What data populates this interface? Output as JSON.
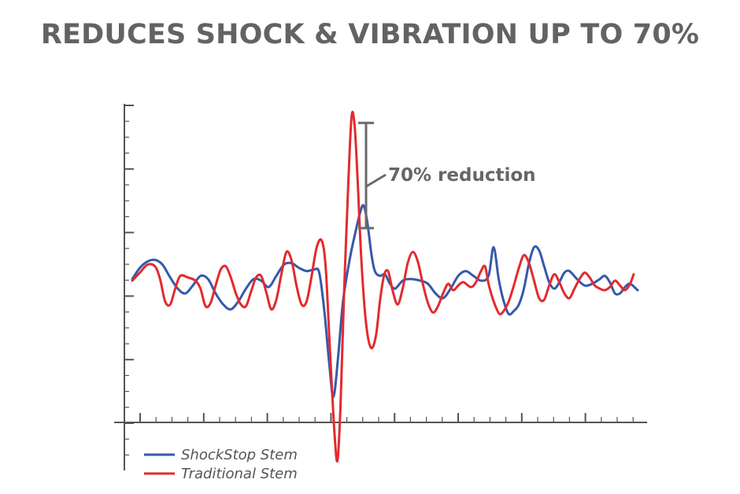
{
  "title": "REDUCES SHOCK & VIBRATION UP TO 70%",
  "annotation": "70% reduction",
  "colors": {
    "shockstop": "#3659a8",
    "traditional": "#e32a2e",
    "axis": "#555555",
    "text": "#636363"
  },
  "chart_data": {
    "type": "line",
    "title": "REDUCES SHOCK & VIBRATION UP TO 70%",
    "xlabel": "",
    "ylabel": "",
    "xlim": [
      0,
      100
    ],
    "ylim": [
      -5,
      6
    ],
    "grid": false,
    "tick_labels": "none",
    "legend_position": "bottom-left",
    "annotation": {
      "text": "70% reduction",
      "from_y": 5.4,
      "to_y": 2.1
    },
    "series": [
      {
        "name": "ShockStop Stem",
        "color": "#3659a8",
        "points": [
          [
            0,
            0.5
          ],
          [
            1.5,
            0.85
          ],
          [
            3,
            1.05
          ],
          [
            4.5,
            1.1
          ],
          [
            6,
            0.95
          ],
          [
            7.5,
            0.55
          ],
          [
            9,
            0.2
          ],
          [
            10.5,
            0.05
          ],
          [
            12,
            0.3
          ],
          [
            13.5,
            0.6
          ],
          [
            15,
            0.5
          ],
          [
            16.5,
            0.05
          ],
          [
            18,
            -0.3
          ],
          [
            19.5,
            -0.45
          ],
          [
            21,
            -0.2
          ],
          [
            22.5,
            0.2
          ],
          [
            24,
            0.5
          ],
          [
            25.5,
            0.45
          ],
          [
            27,
            0.25
          ],
          [
            28.5,
            0.6
          ],
          [
            30,
            0.95
          ],
          [
            31.5,
            1.0
          ],
          [
            33,
            0.85
          ],
          [
            34.5,
            0.75
          ],
          [
            36,
            0.8
          ],
          [
            37,
            0.7
          ],
          [
            38,
            -0.5
          ],
          [
            39,
            -2.2
          ],
          [
            39.8,
            -3.2
          ],
          [
            40.7,
            -2.0
          ],
          [
            41.7,
            -0.2
          ],
          [
            43,
            1.1
          ],
          [
            44.2,
            2.0
          ],
          [
            45.2,
            2.65
          ],
          [
            45.8,
            2.8
          ],
          [
            46.5,
            2.3
          ],
          [
            47.3,
            1.3
          ],
          [
            48,
            0.75
          ],
          [
            49,
            0.6
          ],
          [
            50,
            0.65
          ],
          [
            51,
            0.35
          ],
          [
            52,
            0.2
          ],
          [
            53.5,
            0.45
          ],
          [
            55,
            0.5
          ],
          [
            57,
            0.45
          ],
          [
            58.5,
            0.35
          ],
          [
            60,
            0.05
          ],
          [
            61.5,
            -0.1
          ],
          [
            63,
            0.2
          ],
          [
            64.5,
            0.6
          ],
          [
            66,
            0.75
          ],
          [
            67.5,
            0.6
          ],
          [
            69,
            0.45
          ],
          [
            70.5,
            0.6
          ],
          [
            71.5,
            1.5
          ],
          [
            72.5,
            0.5
          ],
          [
            73.5,
            -0.2
          ],
          [
            74.5,
            -0.6
          ],
          [
            75.5,
            -0.5
          ],
          [
            76.5,
            -0.3
          ],
          [
            77.5,
            0.2
          ],
          [
            78.5,
            1.0
          ],
          [
            79.5,
            1.5
          ],
          [
            80.5,
            1.4
          ],
          [
            81.5,
            0.9
          ],
          [
            82.5,
            0.4
          ],
          [
            83.5,
            0.2
          ],
          [
            84.5,
            0.4
          ],
          [
            85.5,
            0.7
          ],
          [
            86.5,
            0.75
          ],
          [
            88,
            0.5
          ],
          [
            89.5,
            0.3
          ],
          [
            91,
            0.35
          ],
          [
            92.5,
            0.5
          ],
          [
            93.5,
            0.6
          ],
          [
            94.5,
            0.4
          ],
          [
            95.5,
            0.05
          ],
          [
            96.5,
            0.05
          ],
          [
            97.5,
            0.25
          ],
          [
            98.5,
            0.35
          ],
          [
            100,
            0.15
          ]
        ]
      },
      {
        "name": "Traditional Stem",
        "color": "#e32a2e",
        "points": [
          [
            0,
            0.45
          ],
          [
            1.5,
            0.7
          ],
          [
            3,
            0.95
          ],
          [
            4.5,
            0.9
          ],
          [
            5.5,
            0.5
          ],
          [
            6.5,
            -0.2
          ],
          [
            7.5,
            -0.3
          ],
          [
            8.5,
            0.2
          ],
          [
            9.5,
            0.6
          ],
          [
            11,
            0.55
          ],
          [
            12.5,
            0.45
          ],
          [
            13.5,
            0.2
          ],
          [
            14.5,
            -0.35
          ],
          [
            15.5,
            -0.25
          ],
          [
            16.5,
            0.3
          ],
          [
            17.5,
            0.8
          ],
          [
            18.5,
            0.9
          ],
          [
            19.5,
            0.55
          ],
          [
            20.5,
            0.05
          ],
          [
            21.5,
            -0.3
          ],
          [
            22.5,
            -0.35
          ],
          [
            23.5,
            0.1
          ],
          [
            24.5,
            0.55
          ],
          [
            25.5,
            0.6
          ],
          [
            26.5,
            0.1
          ],
          [
            27.5,
            -0.45
          ],
          [
            28.5,
            -0.15
          ],
          [
            29.5,
            0.65
          ],
          [
            30.5,
            1.35
          ],
          [
            31.5,
            1.1
          ],
          [
            32.5,
            0.3
          ],
          [
            33.5,
            -0.3
          ],
          [
            34.5,
            -0.2
          ],
          [
            35.5,
            0.6
          ],
          [
            36.5,
            1.5
          ],
          [
            37.5,
            1.7
          ],
          [
            38.3,
            0.8
          ],
          [
            39.2,
            -2.0
          ],
          [
            40.0,
            -4.3
          ],
          [
            40.6,
            -5.2
          ],
          [
            41.2,
            -3.5
          ],
          [
            41.9,
            0.0
          ],
          [
            42.7,
            3.3
          ],
          [
            43.4,
            5.6
          ],
          [
            44.0,
            5.3
          ],
          [
            44.6,
            3.6
          ],
          [
            45.3,
            1.2
          ],
          [
            46.2,
            -0.8
          ],
          [
            47.2,
            -1.65
          ],
          [
            48.2,
            -1.3
          ],
          [
            49.0,
            -0.2
          ],
          [
            49.8,
            0.6
          ],
          [
            50.6,
            0.75
          ],
          [
            51.5,
            0.15
          ],
          [
            52.5,
            -0.3
          ],
          [
            53.5,
            0.2
          ],
          [
            54.5,
            1.0
          ],
          [
            55.5,
            1.35
          ],
          [
            56.5,
            1.05
          ],
          [
            57.5,
            0.35
          ],
          [
            58.5,
            -0.25
          ],
          [
            59.5,
            -0.55
          ],
          [
            60.5,
            -0.35
          ],
          [
            61.5,
            0.05
          ],
          [
            62.5,
            0.35
          ],
          [
            63.5,
            0.15
          ],
          [
            64.5,
            0.3
          ],
          [
            65.5,
            0.4
          ],
          [
            67,
            0.25
          ],
          [
            68,
            0.4
          ],
          [
            69,
            0.75
          ],
          [
            69.8,
            0.9
          ],
          [
            70.5,
            0.35
          ],
          [
            71.3,
            -0.1
          ],
          [
            72.0,
            -0.4
          ],
          [
            72.7,
            -0.6
          ],
          [
            73.5,
            -0.5
          ],
          [
            74.5,
            -0.2
          ],
          [
            75.5,
            0.3
          ],
          [
            76.5,
            0.85
          ],
          [
            77.5,
            1.25
          ],
          [
            78.5,
            1.0
          ],
          [
            79.5,
            0.45
          ],
          [
            80.5,
            -0.1
          ],
          [
            81.5,
            -0.15
          ],
          [
            82.5,
            0.3
          ],
          [
            83.5,
            0.65
          ],
          [
            84.5,
            0.4
          ],
          [
            85.5,
            0.05
          ],
          [
            86.5,
            -0.1
          ],
          [
            87.5,
            0.2
          ],
          [
            88.5,
            0.5
          ],
          [
            89.5,
            0.7
          ],
          [
            90.5,
            0.55
          ],
          [
            91.5,
            0.3
          ],
          [
            92.5,
            0.2
          ],
          [
            93.5,
            0.15
          ],
          [
            94.5,
            0.25
          ],
          [
            95.5,
            0.45
          ],
          [
            96.5,
            0.3
          ],
          [
            97.5,
            0.15
          ],
          [
            98.5,
            0.35
          ],
          [
            99.2,
            0.65
          ]
        ]
      }
    ]
  }
}
